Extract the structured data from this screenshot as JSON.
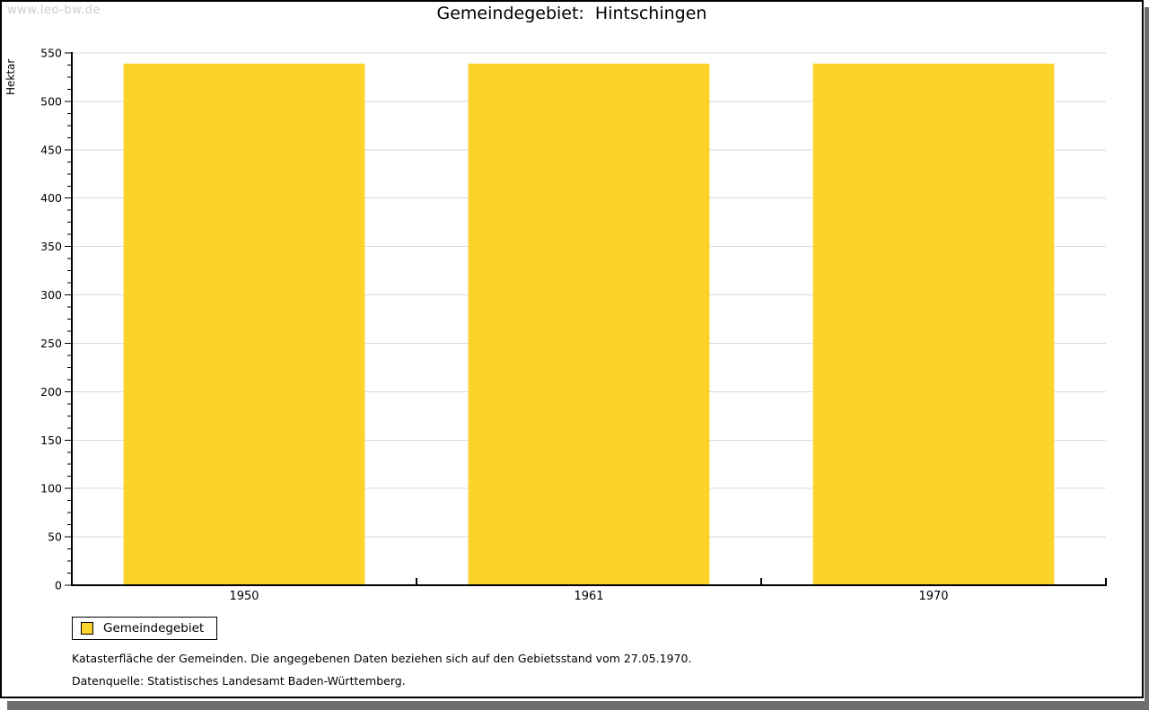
{
  "watermark": "www.leo-bw.de",
  "title": "Gemeindegebiet:  Hintschingen",
  "chart_data": {
    "type": "bar",
    "title": "Gemeindegebiet: Hintschingen",
    "categories": [
      "1950",
      "1961",
      "1970"
    ],
    "series": [
      {
        "name": "Gemeindegebiet",
        "values": [
          539,
          539,
          539
        ]
      }
    ],
    "xlabel": "",
    "ylabel": "Hektar",
    "ylim": [
      0,
      550
    ],
    "ytick_step": 50,
    "yminor_subdivisions": 4,
    "grid": "horizontal-major-only",
    "legend_position": "bottom-left",
    "bar_color": "#fdd32b",
    "grid_color": "#d9d9d9",
    "axis_color": "#000000"
  },
  "legend": {
    "items": [
      {
        "label": "Gemeindegebiet",
        "color": "#fdd32b"
      }
    ]
  },
  "footnotes": [
    "Katasterfläche der Gemeinden. Die angegebenen Daten beziehen sich auf den Gebietsstand vom 27.05.1970.",
    "Datenquelle: Statistisches Landesamt Baden-Württemberg."
  ],
  "colors": {
    "bar": "#fdd32b",
    "grid": "#d9d9d9",
    "watermark": "#cccccc",
    "shadow": "#6e6e6e",
    "background": "#ffffff"
  }
}
